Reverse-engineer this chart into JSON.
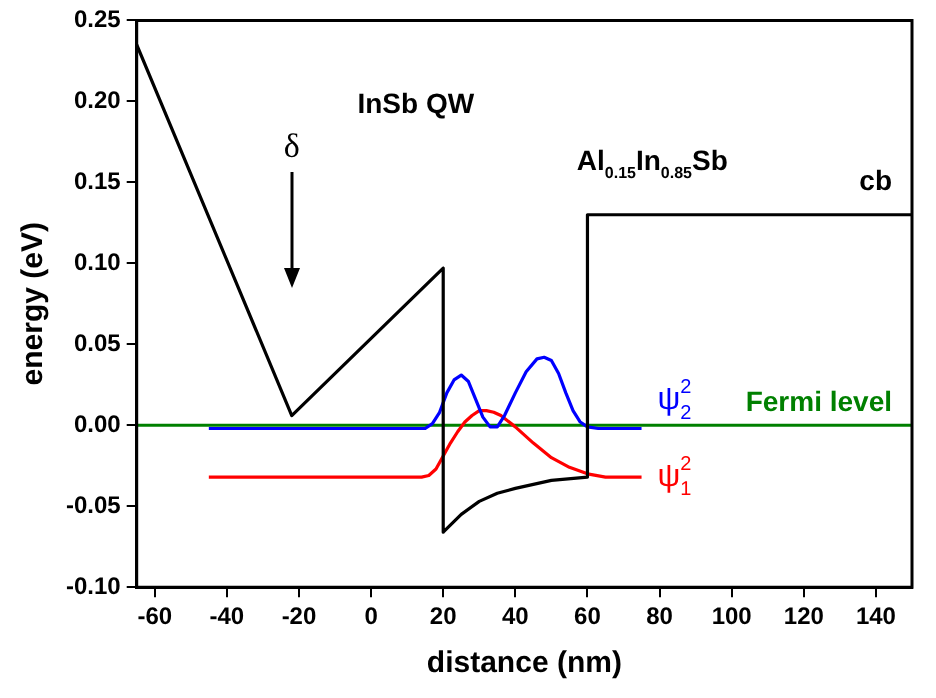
{
  "chart_data": {
    "type": "line",
    "xlabel": "distance (nm)",
    "ylabel": "energy (eV)",
    "xlim": [
      -65,
      150
    ],
    "xticks": [
      -60,
      -40,
      -20,
      0,
      20,
      40,
      60,
      80,
      100,
      120,
      140
    ],
    "ylim": [
      -0.1,
      0.25
    ],
    "yticks": [
      {
        "value": -0.1,
        "label": "-0.10"
      },
      {
        "value": -0.05,
        "label": "-0.05"
      },
      {
        "value": 0,
        "label": "0.00"
      },
      {
        "value": 0.05,
        "label": "0.05"
      },
      {
        "value": 0.1,
        "label": "0.10"
      },
      {
        "value": 0.15,
        "label": "0.15"
      },
      {
        "value": 0.2,
        "label": "0.20"
      },
      {
        "value": 0.25,
        "label": "0.25"
      }
    ],
    "grid": false,
    "legend": false,
    "marker": "none",
    "line_style": "solid",
    "series": [
      {
        "name": "cb",
        "color": "#000000",
        "x": [
          -65,
          -22,
          20,
          20,
          25,
          30,
          35,
          40,
          50,
          60,
          60,
          150
        ],
        "values": [
          0.235,
          0.006,
          0.097,
          -0.066,
          -0.055,
          -0.047,
          -0.042,
          -0.039,
          -0.034,
          -0.032,
          0.13,
          0.13
        ]
      },
      {
        "name": "ψ$_{2}$$^{2}$",
        "color": "#0000ff",
        "x": [
          -45,
          15,
          17,
          19,
          21,
          23,
          25,
          27,
          29,
          31,
          33,
          35,
          37,
          40,
          43,
          46,
          48,
          50,
          52,
          54,
          56,
          58,
          60,
          63,
          75
        ],
        "values": [
          -0.002,
          -0.002,
          0.001,
          0.008,
          0.02,
          0.028,
          0.031,
          0.027,
          0.016,
          0.005,
          -0.001,
          -0.001,
          0.006,
          0.02,
          0.033,
          0.041,
          0.042,
          0.04,
          0.032,
          0.02,
          0.009,
          0.002,
          -0.001,
          -0.002,
          -0.002
        ]
      },
      {
        "name": "ψ$_{1}$$^{2}$",
        "color": "#ff0000",
        "x": [
          -45,
          14,
          16,
          18,
          20,
          22,
          24,
          26,
          28,
          30,
          32,
          34,
          36,
          40,
          45,
          50,
          55,
          60,
          65,
          75
        ],
        "values": [
          -0.032,
          -0.032,
          -0.031,
          -0.027,
          -0.019,
          -0.011,
          -0.004,
          0.002,
          0.006,
          0.009,
          0.009,
          0.008,
          0.006,
          -0.001,
          -0.011,
          -0.02,
          -0.026,
          -0.03,
          -0.032,
          -0.032
        ]
      }
    ],
    "ref_lines": [
      {
        "axis": "y",
        "value": 0,
        "label": "Fermi level",
        "color": "#008000"
      }
    ],
    "annotations": [
      "InSb QW",
      "δ",
      "Al$_{0.15}$In$_{0.85}$Sb"
    ]
  }
}
